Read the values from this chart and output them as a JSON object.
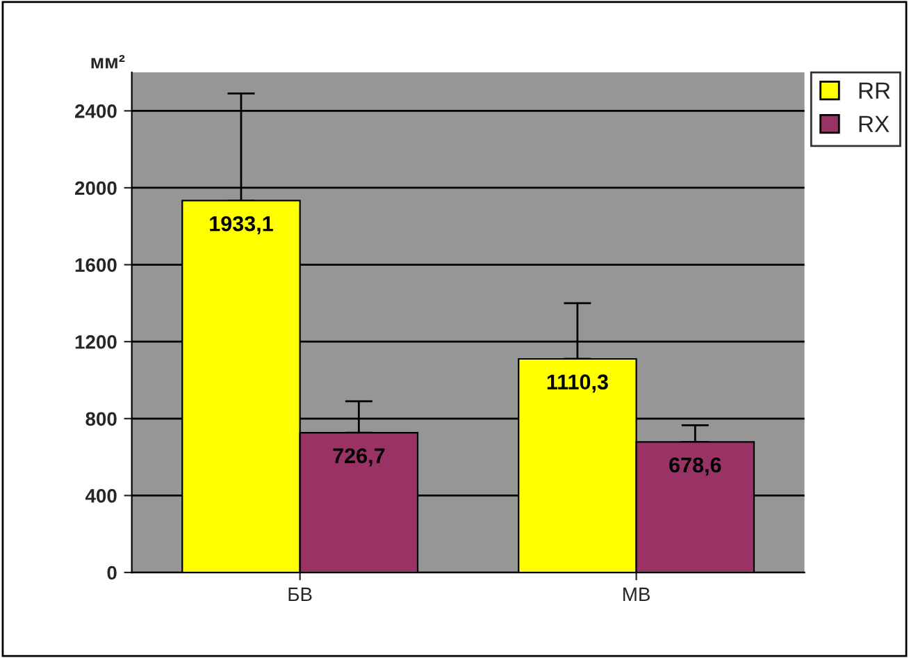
{
  "chart_data": {
    "type": "bar",
    "ylabel": "мм²",
    "categories": [
      "БВ",
      "МВ"
    ],
    "series": [
      {
        "name": "RR",
        "color": "#ffff00",
        "values": [
          1933.1,
          1110.3
        ],
        "errors": [
          [
            1933.1,
            2490
          ],
          [
            1110.3,
            1400
          ]
        ]
      },
      {
        "name": "RX",
        "color": "#993366",
        "values": [
          726.7,
          678.6
        ],
        "errors": [
          [
            726.7,
            890
          ],
          [
            678.6,
            765
          ]
        ]
      }
    ],
    "value_labels": [
      [
        "1933,1",
        "1110,3"
      ],
      [
        "726,7",
        "678,6"
      ]
    ],
    "ylim": [
      0,
      2600
    ],
    "yticks": [
      0,
      400,
      800,
      1200,
      1600,
      2000,
      2400
    ],
    "grid": "y",
    "legend": "top right"
  }
}
